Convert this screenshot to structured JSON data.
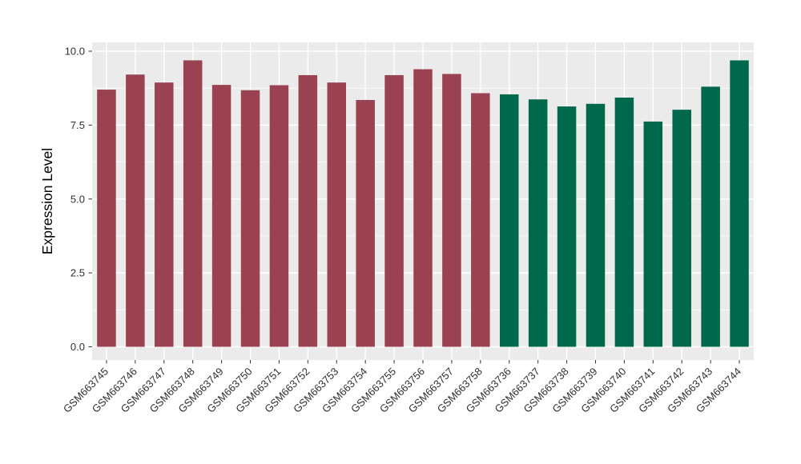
{
  "figure": {
    "background": "#FFFFFF",
    "panel_background": "#EBEBEB",
    "gridline_color": "#FFFFFF",
    "tick_color": "#333333",
    "tick_label_color": "#303030",
    "axis_title_color": "#000000"
  },
  "chart_data": {
    "type": "bar",
    "title": "",
    "xlabel": "",
    "ylabel": "Expression Level",
    "ylim": [
      0,
      10.3
    ],
    "grid": "white major and minor gridlines on gray panel",
    "legend_position": "none",
    "ytick_values": [
      0,
      2.5,
      5,
      7.5,
      10
    ],
    "ytick_labels": [
      "0.0",
      "2.5",
      "5.0",
      "7.5",
      "10.0"
    ],
    "yminor_values": [
      1.25,
      3.75,
      6.25,
      8.75
    ],
    "categories": [
      "GSM663745",
      "GSM663746",
      "GSM663747",
      "GSM663748",
      "GSM663749",
      "GSM663750",
      "GSM663751",
      "GSM663752",
      "GSM663753",
      "GSM663754",
      "GSM663755",
      "GSM663756",
      "GSM663757",
      "GSM663758",
      "GSM663736",
      "GSM663737",
      "GSM663738",
      "GSM663739",
      "GSM663740",
      "GSM663741",
      "GSM663742",
      "GSM663743",
      "GSM663744"
    ],
    "values": [
      8.7,
      9.21,
      8.94,
      9.69,
      8.86,
      8.68,
      8.85,
      9.19,
      8.94,
      8.35,
      9.19,
      9.39,
      9.23,
      8.58,
      8.54,
      8.37,
      8.13,
      8.22,
      8.43,
      7.62,
      8.02,
      8.8,
      9.69
    ],
    "bar_group_keys": [
      "group1",
      "group1",
      "group1",
      "group1",
      "group1",
      "group1",
      "group1",
      "group1",
      "group1",
      "group1",
      "group1",
      "group1",
      "group1",
      "group1",
      "group2",
      "group2",
      "group2",
      "group2",
      "group2",
      "group2",
      "group2",
      "group2",
      "group2"
    ],
    "colors": {
      "group1": "#9A4251",
      "group2": "#00684B"
    }
  }
}
